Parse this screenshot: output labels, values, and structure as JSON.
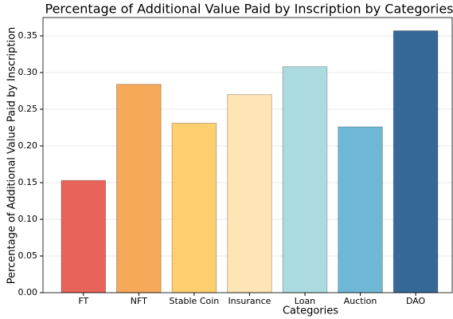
{
  "chart_data": {
    "type": "bar",
    "title": "Percentage of Additional Value Paid by Inscription by Categories",
    "xlabel": "Categories",
    "ylabel": "Percentage of Additional Value Paid by Inscription",
    "categories": [
      "FT",
      "NFT",
      "Stable Coin",
      "Insurance",
      "Loan",
      "Auction",
      "DAO"
    ],
    "values": [
      0.153,
      0.284,
      0.231,
      0.27,
      0.308,
      0.226,
      0.357
    ],
    "colors": [
      "#e8635a",
      "#f7a95a",
      "#fdcf6e",
      "#fee5b5",
      "#abdbe0",
      "#6fb8d5",
      "#356797"
    ],
    "ylim": [
      0,
      0.375
    ],
    "yticks": [
      {
        "value": 0,
        "label": "0.00"
      },
      0.05,
      {
        "value": 0.1,
        "label": "0.10"
      },
      0.15,
      {
        "value": 0.2,
        "label": "0.20"
      },
      0.25,
      {
        "value": 0.3,
        "label": "0.30"
      },
      0.35
    ],
    "grid": true
  }
}
